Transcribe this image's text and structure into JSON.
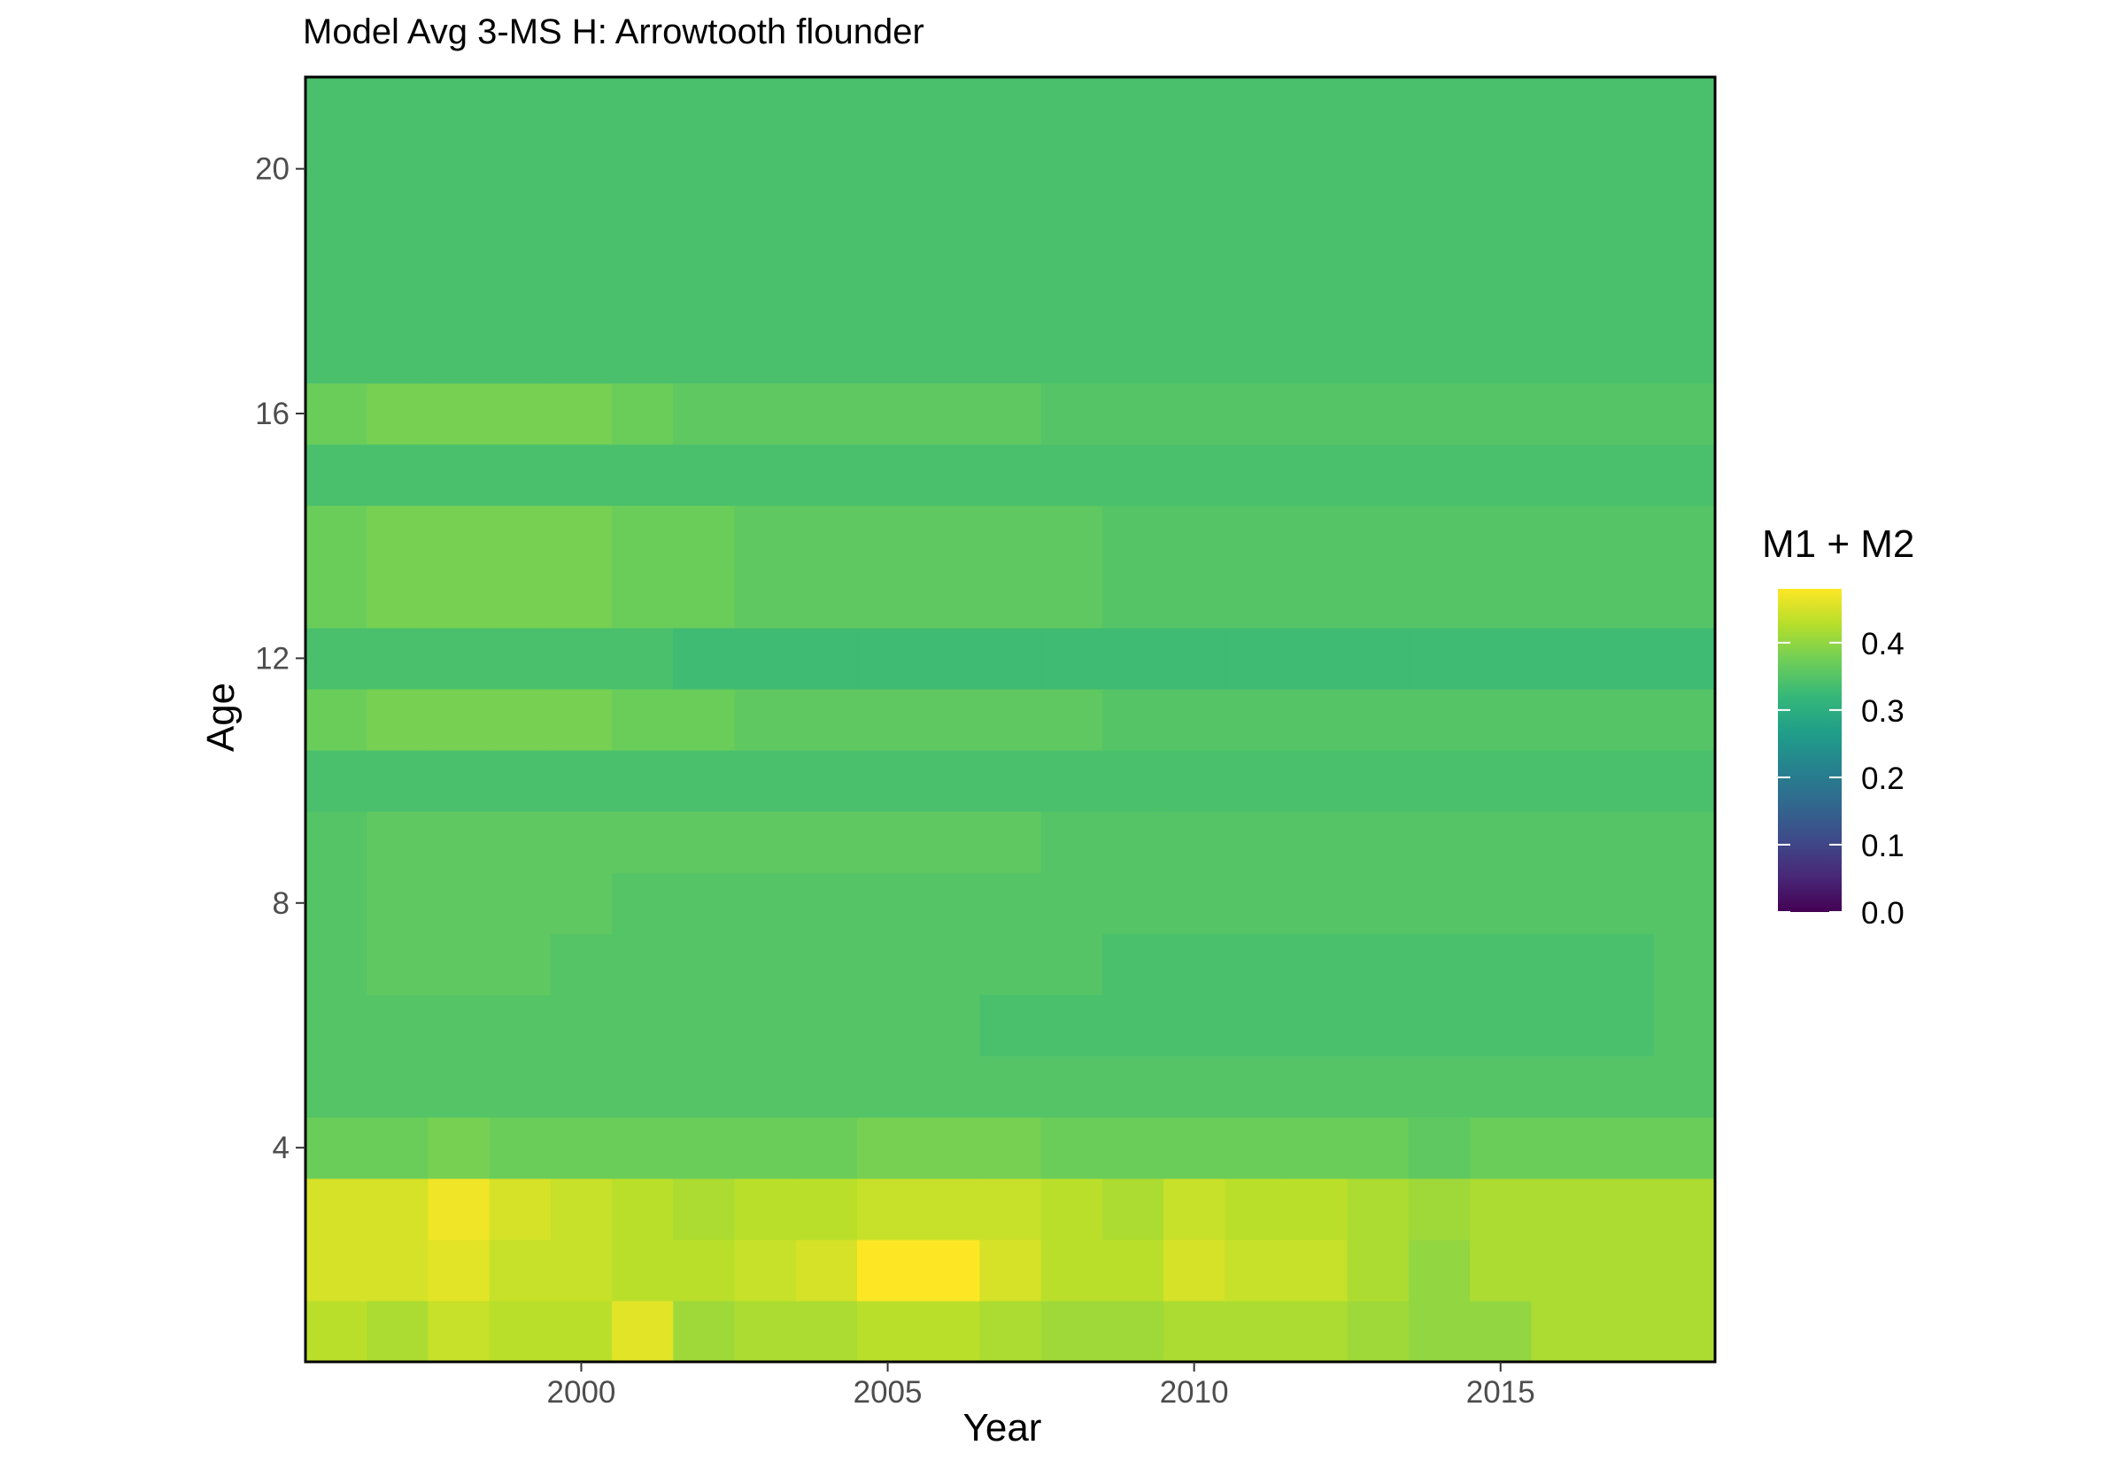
{
  "chart_data": {
    "type": "heatmap",
    "title": "Model Avg 3-MS H: Arrowtooth flounder",
    "xlabel": "Year",
    "ylabel": "Age",
    "x_ticks": [
      2000,
      2005,
      2010,
      2015
    ],
    "y_ticks": [
      4,
      8,
      12,
      16,
      20
    ],
    "xlim": [
      1995.5,
      2018.5
    ],
    "ylim": [
      0.5,
      21.5
    ],
    "years": [
      1996,
      1997,
      1998,
      1999,
      2000,
      2001,
      2002,
      2003,
      2004,
      2005,
      2006,
      2007,
      2008,
      2009,
      2010,
      2011,
      2012,
      2013,
      2014,
      2015,
      2016,
      2017,
      2018
    ],
    "ages": [
      1,
      2,
      3,
      4,
      5,
      6,
      7,
      8,
      9,
      10,
      11,
      12,
      13,
      14,
      15,
      16,
      17,
      18,
      19,
      20,
      21
    ],
    "values_by_age": [
      [
        0.43,
        0.42,
        0.44,
        0.43,
        0.43,
        0.46,
        0.41,
        0.42,
        0.42,
        0.43,
        0.43,
        0.42,
        0.41,
        0.41,
        0.42,
        0.42,
        0.42,
        0.41,
        0.4,
        0.4,
        0.42,
        0.42,
        0.42
      ],
      [
        0.45,
        0.45,
        0.46,
        0.44,
        0.44,
        0.43,
        0.43,
        0.44,
        0.45,
        0.48,
        0.48,
        0.45,
        0.43,
        0.43,
        0.45,
        0.44,
        0.44,
        0.42,
        0.4,
        0.42,
        0.42,
        0.42,
        0.42
      ],
      [
        0.45,
        0.45,
        0.47,
        0.45,
        0.44,
        0.43,
        0.42,
        0.43,
        0.43,
        0.44,
        0.44,
        0.44,
        0.43,
        0.42,
        0.44,
        0.43,
        0.43,
        0.42,
        0.41,
        0.42,
        0.42,
        0.42,
        0.42
      ],
      [
        0.37,
        0.37,
        0.38,
        0.37,
        0.37,
        0.37,
        0.37,
        0.37,
        0.37,
        0.38,
        0.38,
        0.38,
        0.37,
        0.37,
        0.37,
        0.37,
        0.37,
        0.37,
        0.36,
        0.37,
        0.37,
        0.37,
        0.37
      ],
      [
        0.35,
        0.35,
        0.35,
        0.35,
        0.35,
        0.35,
        0.35,
        0.35,
        0.35,
        0.35,
        0.35,
        0.35,
        0.35,
        0.35,
        0.35,
        0.35,
        0.35,
        0.35,
        0.35,
        0.35,
        0.35,
        0.35,
        0.35
      ],
      [
        0.35,
        0.35,
        0.35,
        0.35,
        0.35,
        0.35,
        0.35,
        0.35,
        0.35,
        0.35,
        0.35,
        0.34,
        0.34,
        0.34,
        0.34,
        0.34,
        0.34,
        0.34,
        0.34,
        0.34,
        0.34,
        0.34,
        0.35
      ],
      [
        0.35,
        0.36,
        0.36,
        0.36,
        0.35,
        0.35,
        0.35,
        0.35,
        0.35,
        0.35,
        0.35,
        0.35,
        0.35,
        0.34,
        0.34,
        0.34,
        0.34,
        0.34,
        0.34,
        0.34,
        0.34,
        0.34,
        0.35
      ],
      [
        0.35,
        0.36,
        0.36,
        0.36,
        0.36,
        0.35,
        0.35,
        0.35,
        0.35,
        0.35,
        0.35,
        0.35,
        0.35,
        0.35,
        0.35,
        0.35,
        0.35,
        0.35,
        0.35,
        0.35,
        0.35,
        0.35,
        0.35
      ],
      [
        0.35,
        0.36,
        0.36,
        0.36,
        0.36,
        0.36,
        0.36,
        0.36,
        0.36,
        0.36,
        0.36,
        0.36,
        0.35,
        0.35,
        0.35,
        0.35,
        0.35,
        0.35,
        0.35,
        0.35,
        0.35,
        0.35,
        0.35
      ],
      [
        0.34,
        0.34,
        0.34,
        0.34,
        0.34,
        0.34,
        0.34,
        0.34,
        0.34,
        0.34,
        0.34,
        0.34,
        0.34,
        0.34,
        0.34,
        0.34,
        0.34,
        0.34,
        0.34,
        0.34,
        0.34,
        0.34,
        0.34
      ],
      [
        0.37,
        0.38,
        0.38,
        0.38,
        0.38,
        0.37,
        0.37,
        0.36,
        0.36,
        0.36,
        0.36,
        0.36,
        0.36,
        0.35,
        0.35,
        0.35,
        0.35,
        0.35,
        0.35,
        0.35,
        0.35,
        0.35,
        0.35
      ],
      [
        0.34,
        0.34,
        0.34,
        0.34,
        0.34,
        0.34,
        0.33,
        0.33,
        0.33,
        0.33,
        0.33,
        0.33,
        0.33,
        0.33,
        0.33,
        0.33,
        0.33,
        0.33,
        0.33,
        0.33,
        0.33,
        0.33,
        0.33
      ],
      [
        0.37,
        0.38,
        0.38,
        0.38,
        0.38,
        0.37,
        0.37,
        0.36,
        0.36,
        0.36,
        0.36,
        0.36,
        0.36,
        0.35,
        0.35,
        0.35,
        0.35,
        0.35,
        0.35,
        0.35,
        0.35,
        0.35,
        0.35
      ],
      [
        0.37,
        0.38,
        0.38,
        0.38,
        0.38,
        0.37,
        0.37,
        0.36,
        0.36,
        0.36,
        0.36,
        0.36,
        0.36,
        0.35,
        0.35,
        0.35,
        0.35,
        0.35,
        0.35,
        0.35,
        0.35,
        0.35,
        0.35
      ],
      [
        0.34,
        0.34,
        0.34,
        0.34,
        0.34,
        0.34,
        0.34,
        0.34,
        0.34,
        0.34,
        0.34,
        0.34,
        0.34,
        0.34,
        0.34,
        0.34,
        0.34,
        0.34,
        0.34,
        0.34,
        0.34,
        0.34,
        0.34
      ],
      [
        0.37,
        0.38,
        0.38,
        0.38,
        0.38,
        0.37,
        0.36,
        0.36,
        0.36,
        0.36,
        0.36,
        0.36,
        0.35,
        0.35,
        0.35,
        0.35,
        0.35,
        0.35,
        0.35,
        0.35,
        0.35,
        0.35,
        0.35
      ],
      [
        0.34,
        0.34,
        0.34,
        0.34,
        0.34,
        0.34,
        0.34,
        0.34,
        0.34,
        0.34,
        0.34,
        0.34,
        0.34,
        0.34,
        0.34,
        0.34,
        0.34,
        0.34,
        0.34,
        0.34,
        0.34,
        0.34,
        0.34
      ],
      [
        0.34,
        0.34,
        0.34,
        0.34,
        0.34,
        0.34,
        0.34,
        0.34,
        0.34,
        0.34,
        0.34,
        0.34,
        0.34,
        0.34,
        0.34,
        0.34,
        0.34,
        0.34,
        0.34,
        0.34,
        0.34,
        0.34,
        0.34
      ],
      [
        0.34,
        0.34,
        0.34,
        0.34,
        0.34,
        0.34,
        0.34,
        0.34,
        0.34,
        0.34,
        0.34,
        0.34,
        0.34,
        0.34,
        0.34,
        0.34,
        0.34,
        0.34,
        0.34,
        0.34,
        0.34,
        0.34,
        0.34
      ],
      [
        0.34,
        0.34,
        0.34,
        0.34,
        0.34,
        0.34,
        0.34,
        0.34,
        0.34,
        0.34,
        0.34,
        0.34,
        0.34,
        0.34,
        0.34,
        0.34,
        0.34,
        0.34,
        0.34,
        0.34,
        0.34,
        0.34,
        0.34
      ],
      [
        0.34,
        0.34,
        0.34,
        0.34,
        0.34,
        0.34,
        0.34,
        0.34,
        0.34,
        0.34,
        0.34,
        0.34,
        0.34,
        0.34,
        0.34,
        0.34,
        0.34,
        0.34,
        0.34,
        0.34,
        0.34,
        0.34,
        0.34
      ]
    ],
    "legend": {
      "title": "M1 + M2",
      "position": "right",
      "range": [
        0.0,
        0.48
      ],
      "ticks": [
        0.0,
        0.1,
        0.2,
        0.3,
        0.4
      ],
      "tick_labels": [
        "0.0",
        "0.1",
        "0.2",
        "0.3",
        "0.4"
      ],
      "palette": "viridis",
      "colors": [
        "#440154",
        "#482878",
        "#3e4a89",
        "#31688e",
        "#26828e",
        "#1f9e89",
        "#35b779",
        "#6ece58",
        "#b5de2b",
        "#fde725"
      ]
    },
    "grid": false
  }
}
